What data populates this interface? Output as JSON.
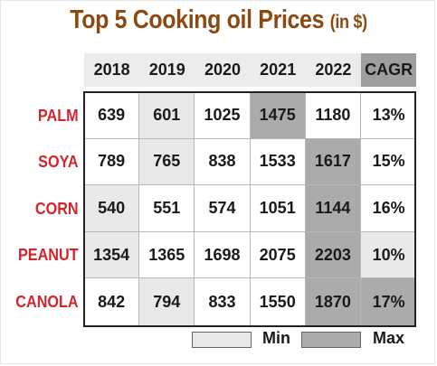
{
  "title": {
    "main": "Top 5 Cooking oil Prices",
    "unit": "(in $)"
  },
  "chart_data": {
    "type": "table",
    "title": "Top 5 Cooking oil Prices (in $)",
    "columns": [
      "2018",
      "2019",
      "2020",
      "2021",
      "2022",
      "CAGR"
    ],
    "rows": [
      {
        "label": "PALM",
        "values": [
          "639",
          "601",
          "1025",
          "1475",
          "1180",
          "13%"
        ],
        "min_col": 1,
        "max_col": 3,
        "cagr_shade": "none"
      },
      {
        "label": "SOYA",
        "values": [
          "789",
          "765",
          "838",
          "1533",
          "1617",
          "15%"
        ],
        "min_col": 1,
        "max_col": 4,
        "cagr_shade": "none"
      },
      {
        "label": "CORN",
        "values": [
          "540",
          "551",
          "574",
          "1051",
          "1144",
          "16%"
        ],
        "min_col": 0,
        "max_col": 4,
        "cagr_shade": "none"
      },
      {
        "label": "PEANUT",
        "values": [
          "1354",
          "1365",
          "1698",
          "2075",
          "2203",
          "10%"
        ],
        "min_col": 0,
        "max_col": 4,
        "cagr_shade": "min"
      },
      {
        "label": "CANOLA",
        "values": [
          "842",
          "794",
          "833",
          "1550",
          "1870",
          "17%"
        ],
        "min_col": 1,
        "max_col": 4,
        "cagr_shade": "max"
      }
    ]
  },
  "legend": {
    "min_label": "Min",
    "max_label": "Max"
  },
  "colors": {
    "title": "#8b4a12",
    "row_label": "#d3242b",
    "header_bg": "#ececec",
    "header_cagr_bg": "#9e9e9e",
    "min_fill": "#e9e9e9",
    "max_fill": "#ababab",
    "grid_line": "#b8b8b8"
  }
}
